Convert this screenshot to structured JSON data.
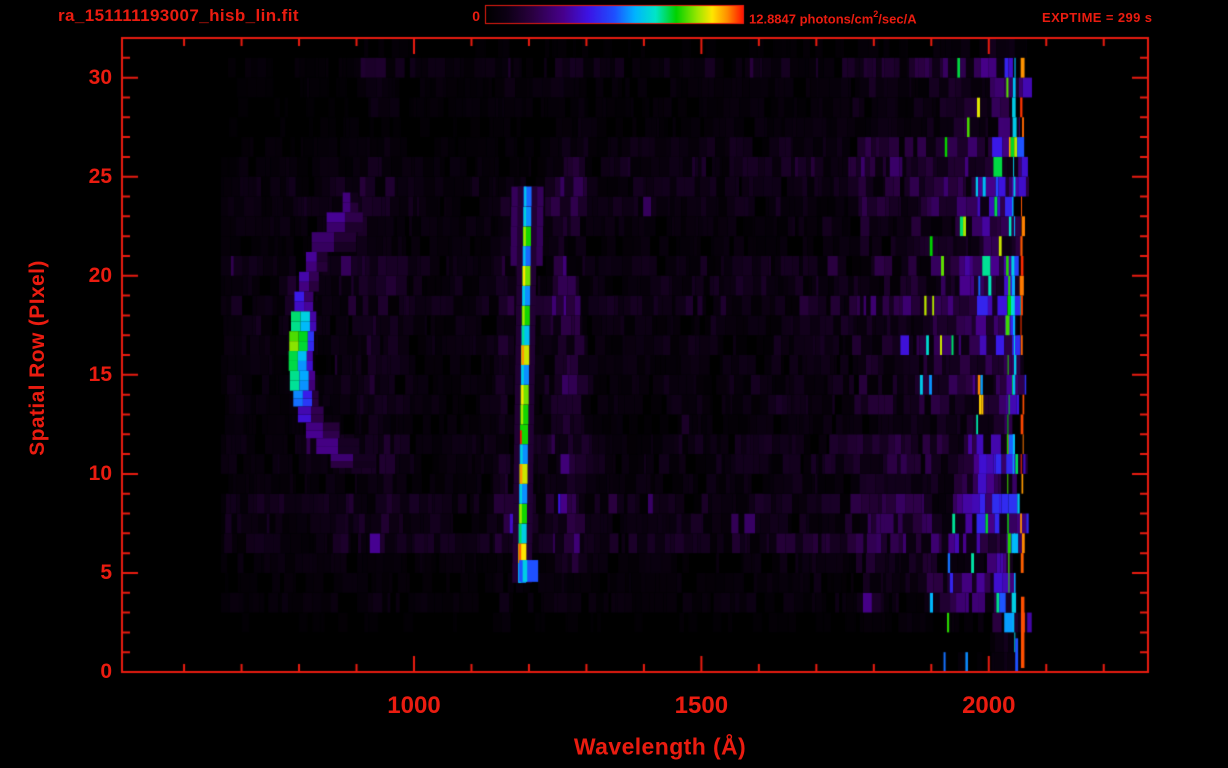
{
  "header": {
    "title": "ra_151111193007_hisb_lin.fit",
    "exptime_label": "EXPTIME = 299 s",
    "colorbar": {
      "min_label": "0",
      "max_label_pre": "12.8847 photons/cm",
      "max_label_sup": "2",
      "max_label_post": "/sec/A"
    }
  },
  "chart_data": {
    "type": "heatmap",
    "title": "ra_151111193007_hisb_lin.fit",
    "xlabel": "Wavelength (Å)",
    "ylabel": "Spatial Row (PIxel)",
    "xlim": [
      492,
      2277
    ],
    "ylim": [
      0,
      32
    ],
    "x_major_ticks": [
      1000,
      1500,
      2000
    ],
    "x_minor_start": 600,
    "x_minor_end": 2200,
    "x_minor_step": 100,
    "y_major_ticks": [
      0,
      5,
      10,
      15,
      20,
      25,
      30
    ],
    "y_minor_step": 1,
    "colorbar": {
      "min": 0,
      "max": 12.8847,
      "units": "photons/cm^2/sec/A",
      "orientation": "horizontal-top"
    },
    "exptime_seconds": 299,
    "grid": false,
    "colors": {
      "accent": "#ea1c10",
      "background": "#000000",
      "colormap_stops": [
        [
          0.0,
          "#000000"
        ],
        [
          0.08,
          "#0d0014"
        ],
        [
          0.18,
          "#2a0040"
        ],
        [
          0.3,
          "#47008c"
        ],
        [
          0.4,
          "#3c14e6"
        ],
        [
          0.5,
          "#1e50ff"
        ],
        [
          0.58,
          "#00b4ff"
        ],
        [
          0.66,
          "#00e6c8"
        ],
        [
          0.74,
          "#00d200"
        ],
        [
          0.82,
          "#96e600"
        ],
        [
          0.88,
          "#ffe600"
        ],
        [
          0.94,
          "#ff8c00"
        ],
        [
          1.0,
          "#ff1400"
        ]
      ]
    },
    "features": {
      "seed": 13,
      "data_lambda_start": 664,
      "data_lambda_end_jagged": [
        2040,
        2076
      ],
      "background_stripes": {
        "base_level": 0.052,
        "purple_columns": [
          {
            "center": 1265,
            "sigma": 30,
            "amp": 0.1
          },
          {
            "center": 1160,
            "sigma": 13,
            "amp": 0.05
          },
          {
            "center": 930,
            "sigma": 45,
            "amp": 0.045
          },
          {
            "center": 676,
            "sigma": 7,
            "amp": 0.05
          },
          {
            "center": 1790,
            "sigma": 18,
            "amp": 0.03
          }
        ],
        "right_ramp": [
          {
            "from": 1300,
            "span": 450,
            "amp": 0.022
          },
          {
            "from": 1750,
            "span": 200,
            "amp": 0.075
          },
          {
            "from": 1950,
            "span": 120,
            "amp": 0.2
          }
        ]
      },
      "crescent": {
        "description": "C-shaped arc, bright blue-cyan left limb",
        "blocks": [
          {
            "r0": 23.2,
            "r1": 24.2,
            "l0": 876,
            "l1": 912,
            "v": 0.14
          },
          {
            "r0": 22.2,
            "r1": 23.2,
            "l0": 848,
            "l1": 932,
            "v": 0.18
          },
          {
            "r0": 21.2,
            "r1": 22.2,
            "l0": 822,
            "l1": 925,
            "v": 0.16
          },
          {
            "r0": 20.2,
            "r1": 21.2,
            "l0": 812,
            "l1": 862,
            "v": 0.18
          },
          {
            "r0": 19.2,
            "r1": 20.2,
            "l0": 800,
            "l1": 846,
            "v": 0.21
          },
          {
            "r0": 18.2,
            "r1": 19.2,
            "l0": 792,
            "l1": 836,
            "v": 0.3
          },
          {
            "r0": 17.2,
            "r1": 18.2,
            "l0": 786,
            "l1": 830,
            "v": 0.62
          },
          {
            "r0": 16.2,
            "r1": 17.2,
            "l0": 783,
            "l1": 826,
            "v": 0.72
          },
          {
            "r0": 15.2,
            "r1": 16.2,
            "l0": 782,
            "l1": 824,
            "v": 0.6
          },
          {
            "r0": 14.2,
            "r1": 15.2,
            "l0": 784,
            "l1": 828,
            "v": 0.56
          },
          {
            "r0": 13.4,
            "r1": 14.2,
            "l0": 790,
            "l1": 834,
            "v": 0.46
          },
          {
            "r0": 12.6,
            "r1": 13.4,
            "l0": 798,
            "l1": 858,
            "v": 0.25
          },
          {
            "r0": 11.8,
            "r1": 12.6,
            "l0": 812,
            "l1": 890,
            "v": 0.2
          },
          {
            "r0": 11.0,
            "r1": 11.8,
            "l0": 830,
            "l1": 930,
            "v": 0.16
          },
          {
            "r0": 10.3,
            "r1": 11.0,
            "l0": 855,
            "l1": 958,
            "v": 0.12
          }
        ]
      },
      "emission_line": {
        "description": "narrow bright vertical line near 1190-1200 A, rows 5-24",
        "lambda_at_row5": 1188,
        "tilt_per_row": 0.5,
        "core_halfwidth": 7,
        "halo_halfwidth": 17,
        "halo_level": 0.15,
        "top_halo_rows_from": 21,
        "top_halo_halfwidth": 28,
        "top_halo_level": 0.22,
        "rows": [
          {
            "r": 5,
            "v": 0.55
          },
          {
            "r": 6,
            "v": 0.88
          },
          {
            "r": 7,
            "v": 0.62
          },
          {
            "r": 8,
            "v": 0.75
          },
          {
            "r": 9,
            "v": 0.55
          },
          {
            "r": 10,
            "v": 0.85
          },
          {
            "r": 11,
            "v": 0.55
          },
          {
            "r": 12,
            "v": 1.0
          },
          {
            "r": 13,
            "v": 0.75
          },
          {
            "r": 14,
            "v": 0.8
          },
          {
            "r": 15,
            "v": 0.55
          },
          {
            "r": 16,
            "v": 0.85
          },
          {
            "r": 17,
            "v": 0.6
          },
          {
            "r": 18,
            "v": 0.75
          },
          {
            "r": 19,
            "v": 0.55
          },
          {
            "r": 20,
            "v": 0.8
          },
          {
            "r": 21,
            "v": 0.52
          },
          {
            "r": 22,
            "v": 0.75
          },
          {
            "r": 23,
            "v": 0.55
          },
          {
            "r": 24,
            "v": 0.52
          }
        ],
        "bottom_blob": {
          "r0": 4.55,
          "r1": 5.65,
          "l0": 1183,
          "l1": 1216,
          "v": 0.5
        }
      },
      "right_edge_lines": {
        "green": {
          "lambda": 2032,
          "width": 4,
          "prob": 0.7,
          "v": 0.76
        },
        "red": {
          "lambda": 2056,
          "width": 4,
          "prob": 0.72,
          "v": 0.96
        },
        "cyan": {
          "lambda": 2042,
          "width": 3.5,
          "prob": 0.48,
          "v": 0.6
        },
        "red_bottom_segment": {
          "r0": 0.2,
          "r1": 3.8,
          "l0": 2056,
          "l1": 2062,
          "v": 0.97
        },
        "blue_bottom_segment": {
          "r0": 0.0,
          "r1": 1.7,
          "l0": 2046,
          "l1": 2051,
          "v": 0.5
        }
      }
    }
  }
}
